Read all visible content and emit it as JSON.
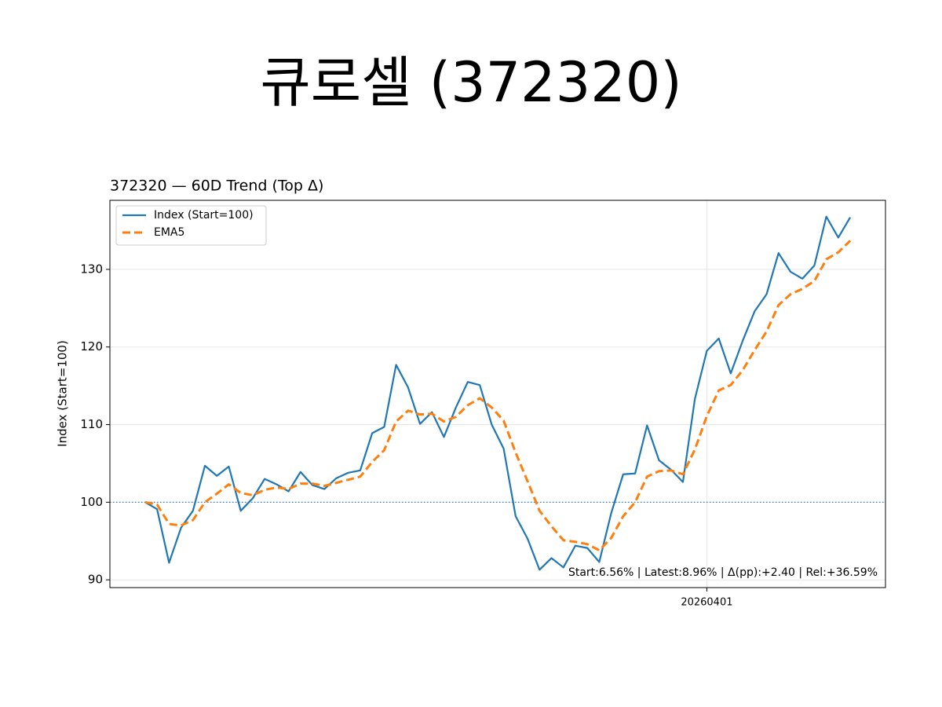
{
  "chart_data": {
    "type": "line",
    "title": "큐로셀 (372320)",
    "subtitle": "372320 — 60D Trend (Top Δ)",
    "y_label": "Index (Start=100)",
    "annotation": "Start:6.56% | Latest:8.96% | Δ(pp):+2.40 | Rel:+36.59%",
    "categories": [
      null,
      null,
      null,
      null,
      null,
      null,
      null,
      null,
      null,
      null,
      null,
      null,
      null,
      null,
      null,
      null,
      null,
      null,
      null,
      null,
      null,
      null,
      null,
      null,
      null,
      null,
      null,
      null,
      null,
      null,
      null,
      null,
      null,
      null,
      null,
      null,
      null,
      null,
      null,
      null,
      null,
      null,
      null,
      null,
      null,
      null,
      null,
      "20260401",
      null,
      null,
      null,
      null,
      null,
      null,
      null,
      null,
      null,
      null,
      null,
      null
    ],
    "series": [
      {
        "name": "Index (Start=100)",
        "color": "#1f77b4",
        "dash": "solid",
        "values": [
          100,
          99.1,
          92.2,
          96.7,
          98.9,
          104.7,
          103.4,
          104.6,
          98.9,
          100.5,
          103.0,
          102.3,
          101.4,
          103.9,
          102.2,
          101.7,
          103.1,
          103.8,
          104.1,
          108.9,
          109.7,
          117.7,
          114.8,
          110.1,
          111.6,
          108.4,
          112.2,
          115.5,
          115.1,
          110.0,
          106.9,
          98.2,
          95.3,
          91.3,
          92.8,
          91.6,
          94.4,
          94.1,
          92.3,
          98.6,
          103.6,
          103.7,
          109.9,
          105.4,
          104.2,
          102.6,
          113.3,
          119.5,
          121.1,
          116.6,
          120.8,
          124.6,
          126.8,
          132.1,
          129.7,
          128.8,
          130.5,
          136.8,
          134.1,
          136.7
        ]
      },
      {
        "name": "EMA5",
        "color": "#ff7f0e",
        "dash": "dashed",
        "values": [
          100,
          99.7,
          97.2,
          97.0,
          97.7,
          100.0,
          101.1,
          102.3,
          101.2,
          100.9,
          101.6,
          101.9,
          101.7,
          102.4,
          102.4,
          102.1,
          102.5,
          102.9,
          103.3,
          105.2,
          106.7,
          110.4,
          111.8,
          111.3,
          111.4,
          110.4,
          111.0,
          112.5,
          113.4,
          112.2,
          110.5,
          106.4,
          102.7,
          98.9,
          96.9,
          95.1,
          94.9,
          94.6,
          93.8,
          95.4,
          98.2,
          100.0,
          103.3,
          104.0,
          104.1,
          103.6,
          106.8,
          111.1,
          114.4,
          115.1,
          117.0,
          119.6,
          122.0,
          125.4,
          126.8,
          127.5,
          128.5,
          131.3,
          132.2,
          133.7
        ]
      }
    ],
    "reference_line": {
      "value": 100,
      "color": "#1f77b4"
    },
    "xlim": [
      -2.95,
      61.95
    ],
    "ylim": [
      89,
      138.9
    ],
    "yticks": [
      90,
      100,
      110,
      120,
      130
    ],
    "grid": true,
    "legend": "upper-left"
  }
}
